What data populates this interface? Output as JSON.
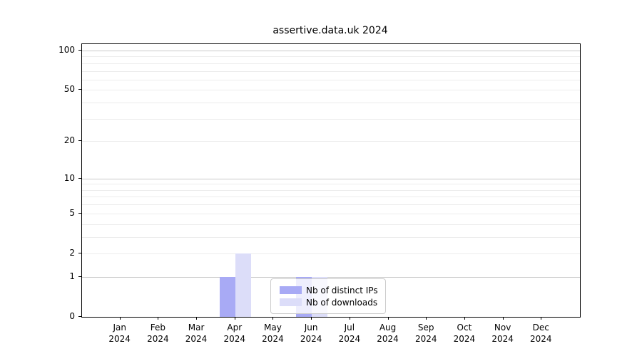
{
  "chart_data": {
    "type": "bar",
    "title": "assertive.data.uk 2024",
    "categories": [
      "Jan",
      "Feb",
      "Mar",
      "Apr",
      "May",
      "Jun",
      "Jul",
      "Aug",
      "Sep",
      "Oct",
      "Nov",
      "Dec"
    ],
    "year_label": "2024",
    "series": [
      {
        "name": "Nb of distinct IPs",
        "color": "#a8aaf5",
        "values": [
          0,
          0,
          0,
          1,
          0,
          1,
          0,
          0,
          0,
          0,
          0,
          0
        ]
      },
      {
        "name": "Nb of downloads",
        "color": "#dcddf9",
        "values": [
          0,
          0,
          0,
          2,
          0,
          1,
          0,
          0,
          0,
          0,
          0,
          0
        ]
      }
    ],
    "y_scale": "log1p",
    "y_ticks": [
      0,
      1,
      2,
      5,
      10,
      20,
      50,
      100
    ],
    "major_gridlines": [
      1,
      10,
      100
    ],
    "minor_gridlines": [
      2,
      3,
      4,
      5,
      6,
      7,
      8,
      9,
      20,
      30,
      40,
      50,
      60,
      70,
      80,
      90
    ],
    "ylim": [
      0,
      112
    ],
    "grid": "horizontal",
    "legend_position": "lower center-right, inside plot",
    "colors": {
      "major_grid": "#c9c9c9",
      "minor_grid": "#ececec",
      "axis": "#000000",
      "text": "#000000",
      "background": "#ffffff"
    }
  }
}
